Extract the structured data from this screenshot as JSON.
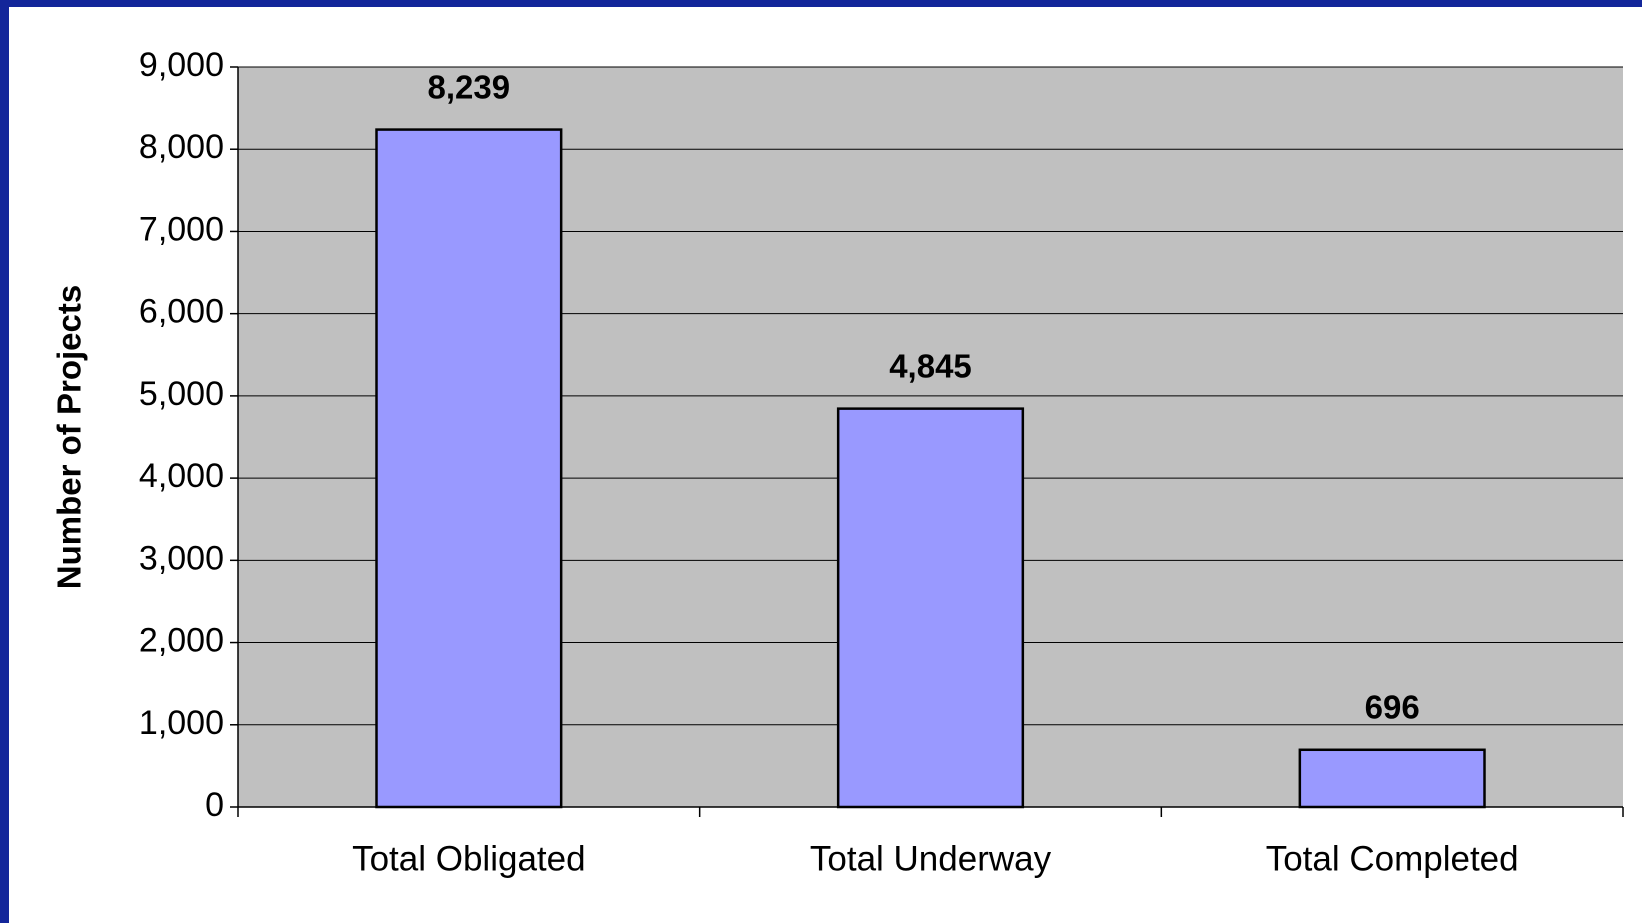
{
  "chart_data": {
    "type": "bar",
    "y_axis_label": "Number of Projects",
    "categories": [
      "Total Obligated",
      "Total Underway",
      "Total Completed"
    ],
    "values": [
      8239,
      4845,
      696
    ],
    "value_labels": [
      "8,239",
      "4,845",
      "696"
    ],
    "color": "#9999ff",
    "ylim": [
      0,
      9000
    ],
    "yticks": [
      0,
      {
        "value": 1000,
        "label": "1,000"
      },
      {
        "value": 2000,
        "label": "2,000"
      },
      {
        "value": 3000,
        "label": "3,000"
      },
      {
        "value": 4000,
        "label": "4,000"
      },
      {
        "value": 5000,
        "label": "5,000"
      },
      {
        "value": 6000,
        "label": "6,000"
      },
      {
        "value": 7000,
        "label": "7,000"
      },
      {
        "value": 8000,
        "label": "8,000"
      },
      {
        "value": 9000,
        "label": "9,000"
      }
    ],
    "grid": true
  }
}
